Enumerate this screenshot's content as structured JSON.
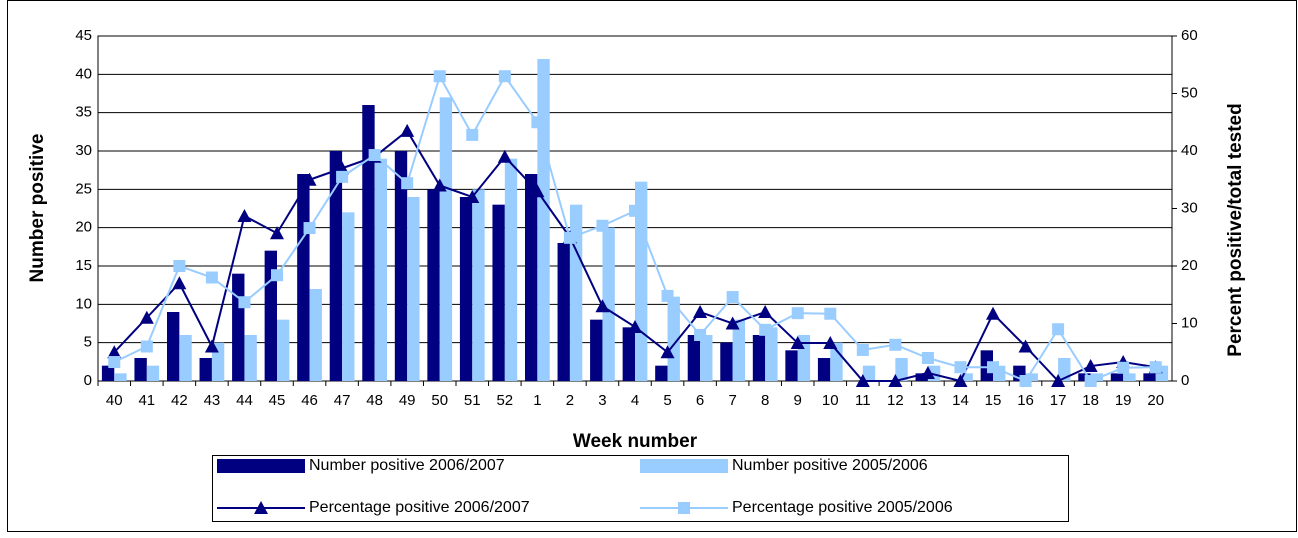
{
  "chart_data": {
    "type": "bar",
    "x_label": "Week number",
    "y_label": "Number positive",
    "y2_label": "Percent positive/total tested",
    "categories": [
      "40",
      "41",
      "42",
      "43",
      "44",
      "45",
      "46",
      "47",
      "48",
      "49",
      "50",
      "51",
      "52",
      "1",
      "2",
      "3",
      "4",
      "5",
      "6",
      "7",
      "8",
      "9",
      "10",
      "11",
      "12",
      "13",
      "14",
      "15",
      "16",
      "17",
      "18",
      "19",
      "20"
    ],
    "ylim": [
      0,
      45
    ],
    "yticks": [
      0,
      5,
      10,
      15,
      20,
      25,
      30,
      35,
      40,
      45
    ],
    "y2lim": [
      0,
      60
    ],
    "y2ticks": [
      0,
      10,
      20,
      30,
      40,
      50,
      60
    ],
    "grid": true,
    "series": [
      {
        "name": "Number positive 2006/2007",
        "type": "bar",
        "color": "#000080",
        "values": [
          2,
          3,
          9,
          3,
          14,
          17,
          27,
          30,
          36,
          30,
          25,
          24,
          23,
          27,
          18,
          8,
          7,
          2,
          6,
          5,
          6,
          4,
          3,
          0,
          0,
          1,
          0,
          4,
          2,
          0,
          1,
          1,
          1
        ]
      },
      {
        "name": "Number positive 2005/2006",
        "type": "bar",
        "color": "#99ccff",
        "values": [
          1,
          2,
          6,
          5,
          6,
          8,
          12,
          22,
          29,
          24,
          37,
          25,
          29,
          42,
          23,
          20,
          26,
          11,
          6,
          8,
          7,
          6,
          5,
          2,
          3,
          2,
          1,
          2,
          1,
          3,
          1,
          1,
          2
        ]
      },
      {
        "name": "Percentage positive 2006/2007",
        "type": "line",
        "axis": "y2",
        "marker": "triangle",
        "color": "#000080",
        "values": [
          5,
          11,
          17,
          6,
          28.7,
          25.7,
          35,
          37,
          39,
          43.5,
          34,
          32,
          39,
          33,
          25,
          13,
          9.4,
          5,
          12,
          10,
          12,
          6.6,
          6.6,
          0,
          0,
          1.4,
          0,
          11.7,
          6,
          0,
          2.6,
          3.3,
          2.4
        ]
      },
      {
        "name": "Percentage positive 2005/2006",
        "type": "line",
        "axis": "y2",
        "marker": "square",
        "color": "#99ccff",
        "values": [
          3.3,
          6,
          20,
          18,
          13.7,
          18.4,
          26.6,
          35.5,
          39.3,
          34.4,
          53,
          42.8,
          53,
          45,
          24.9,
          27,
          29.6,
          14.8,
          8,
          14.6,
          8.9,
          11.8,
          11.7,
          5.4,
          6.3,
          4,
          2.4,
          2.4,
          0,
          9,
          0,
          2.3,
          2.4
        ]
      }
    ]
  }
}
